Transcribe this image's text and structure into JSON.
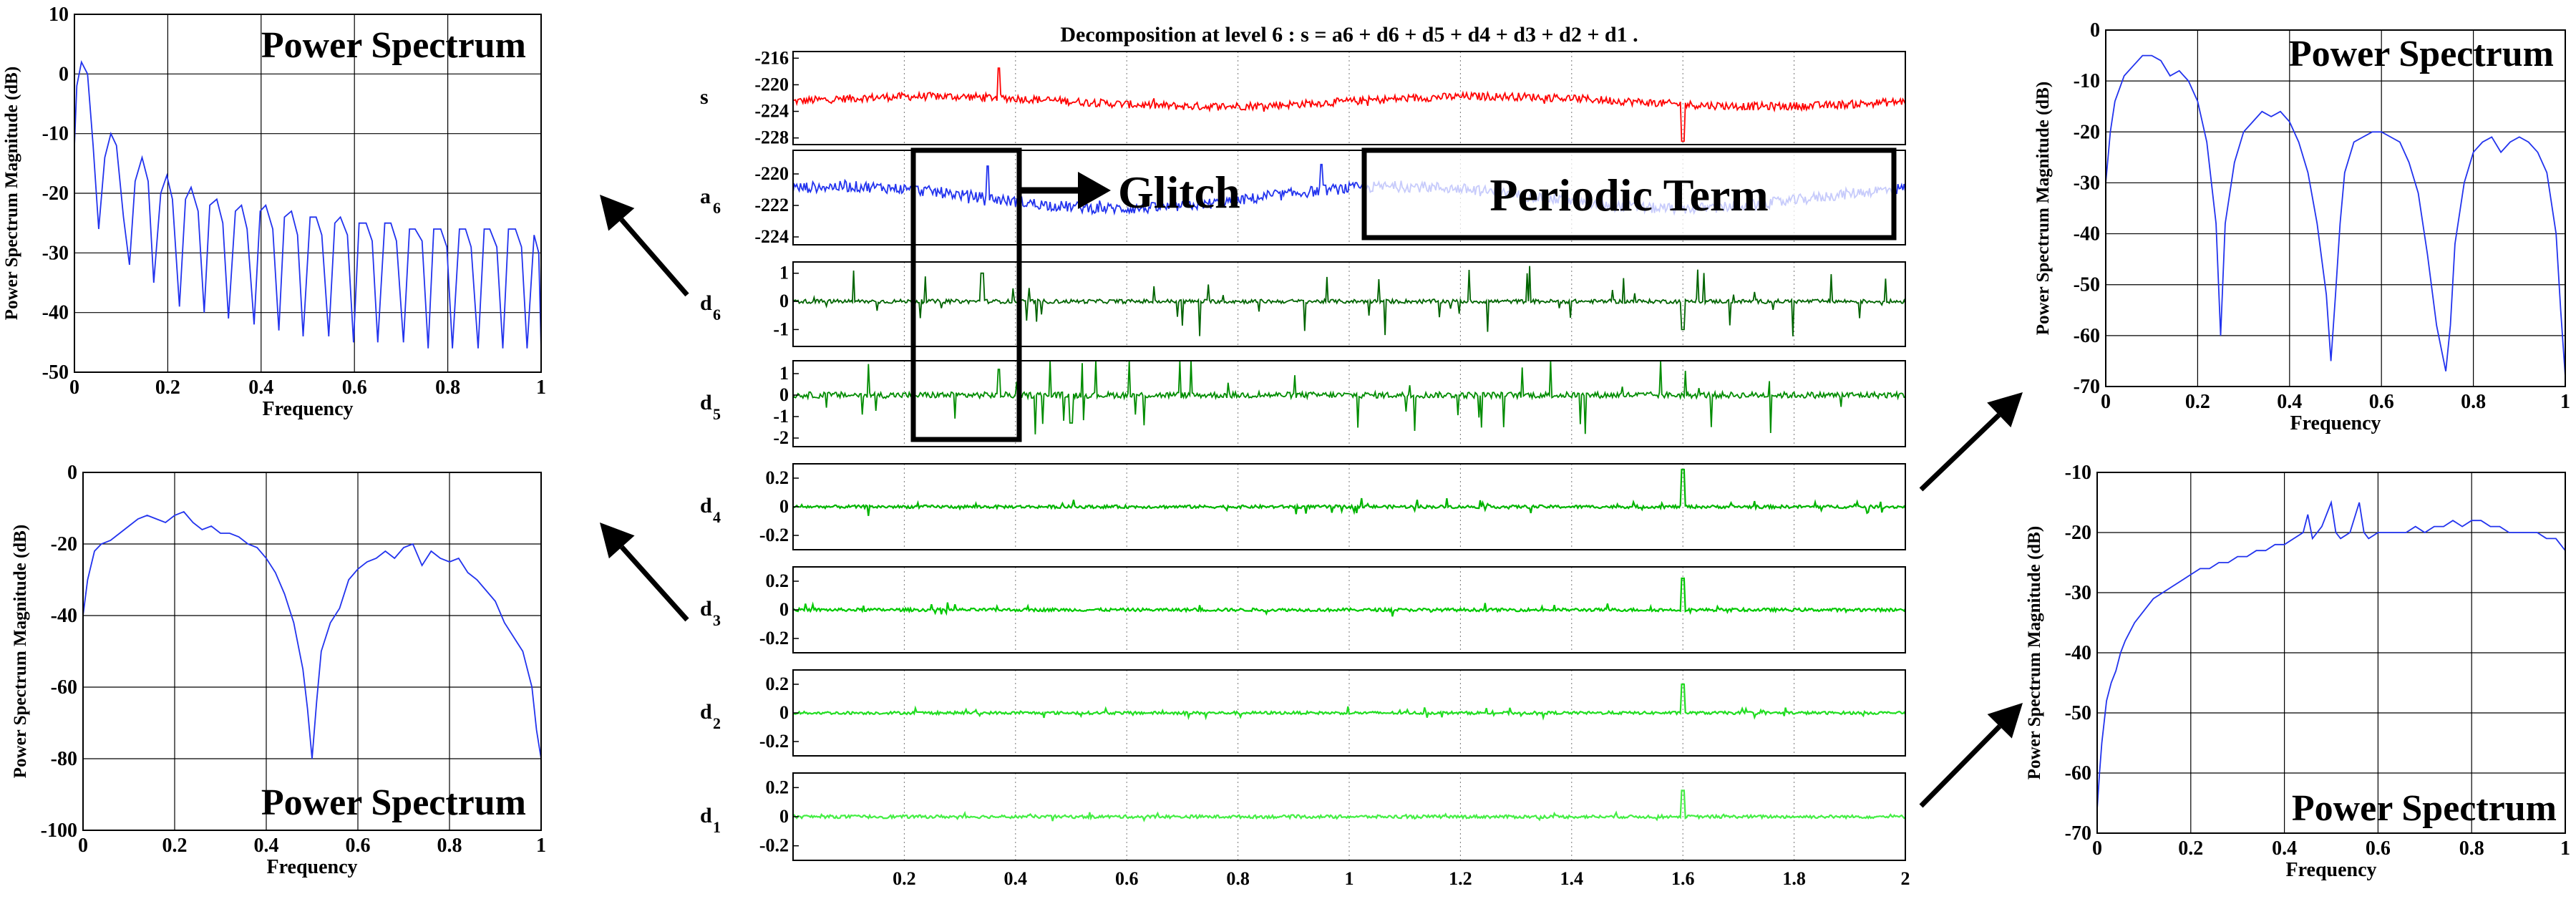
{
  "chart_data": [
    {
      "id": "ps_top_left",
      "type": "line",
      "title": "Power Spectrum",
      "xlabel": "Frequency",
      "ylabel": "Power Spectrum Magnitude (dB)",
      "xlim": [
        0,
        1
      ],
      "ylim": [
        -50,
        10
      ],
      "xticks": [
        "0",
        "0.2",
        "0.4",
        "0.6",
        "0.8",
        "1"
      ],
      "yticks": [
        "10",
        "0",
        "-10",
        "-20",
        "-30",
        "-40",
        "-50"
      ],
      "grid": true,
      "line_color": "#2233ee",
      "x": [
        0,
        0.005,
        0.015,
        0.028,
        0.04,
        0.052,
        0.065,
        0.078,
        0.09,
        0.105,
        0.118,
        0.13,
        0.145,
        0.158,
        0.17,
        0.185,
        0.198,
        0.21,
        0.225,
        0.238,
        0.25,
        0.265,
        0.278,
        0.29,
        0.305,
        0.318,
        0.33,
        0.345,
        0.358,
        0.37,
        0.385,
        0.398,
        0.41,
        0.425,
        0.438,
        0.45,
        0.465,
        0.478,
        0.49,
        0.505,
        0.518,
        0.53,
        0.545,
        0.558,
        0.57,
        0.585,
        0.598,
        0.61,
        0.625,
        0.638,
        0.65,
        0.665,
        0.678,
        0.69,
        0.705,
        0.718,
        0.73,
        0.745,
        0.758,
        0.77,
        0.785,
        0.798,
        0.81,
        0.825,
        0.838,
        0.85,
        0.865,
        0.878,
        0.89,
        0.905,
        0.918,
        0.93,
        0.945,
        0.958,
        0.97,
        0.985,
        0.995,
        1.0
      ],
      "y": [
        -12,
        -2,
        2,
        0,
        -12,
        -26,
        -14,
        -10,
        -12,
        -24,
        -32,
        -18,
        -14,
        -18,
        -35,
        -20,
        -17,
        -21,
        -39,
        -21,
        -19,
        -23,
        -40,
        -22,
        -21,
        -25,
        -41,
        -23,
        -22,
        -26,
        -42,
        -23,
        -22,
        -26,
        -43,
        -24,
        -23,
        -27,
        -44,
        -24,
        -24,
        -27,
        -44,
        -25,
        -24,
        -27,
        -45,
        -25,
        -25,
        -28,
        -45,
        -25,
        -25,
        -28,
        -45,
        -26,
        -26,
        -28,
        -46,
        -26,
        -26,
        -29,
        -46,
        -26,
        -26,
        -29,
        -46,
        -26,
        -26,
        -29,
        -46,
        -26,
        -26,
        -29,
        -46,
        -27,
        -30,
        -46
      ]
    },
    {
      "id": "ps_bottom_left",
      "type": "line",
      "title": "Power Spectrum",
      "xlabel": "Frequency",
      "ylabel": "Power Spectrum Magnitude (dB)",
      "xlim": [
        0,
        1
      ],
      "ylim": [
        -100,
        0
      ],
      "xticks": [
        "0",
        "0.2",
        "0.4",
        "0.6",
        "0.8",
        "1"
      ],
      "yticks": [
        "0",
        "-20",
        "-40",
        "-60",
        "-80",
        "-100"
      ],
      "grid": true,
      "line_color": "#2233ee",
      "x": [
        0,
        0.01,
        0.025,
        0.04,
        0.06,
        0.08,
        0.1,
        0.12,
        0.14,
        0.16,
        0.18,
        0.2,
        0.22,
        0.24,
        0.26,
        0.28,
        0.3,
        0.32,
        0.34,
        0.36,
        0.38,
        0.4,
        0.42,
        0.44,
        0.46,
        0.48,
        0.49,
        0.5,
        0.51,
        0.52,
        0.54,
        0.56,
        0.58,
        0.6,
        0.62,
        0.64,
        0.66,
        0.68,
        0.7,
        0.72,
        0.74,
        0.76,
        0.78,
        0.8,
        0.82,
        0.84,
        0.86,
        0.88,
        0.9,
        0.92,
        0.94,
        0.96,
        0.98,
        0.99,
        1.0
      ],
      "y": [
        -40,
        -30,
        -22,
        -20,
        -19,
        -17,
        -15,
        -13,
        -12,
        -13,
        -14,
        -12,
        -11,
        -14,
        -16,
        -15,
        -17,
        -17,
        -18,
        -20,
        -21,
        -24,
        -28,
        -34,
        -42,
        -55,
        -66,
        -80,
        -64,
        -50,
        -42,
        -38,
        -30,
        -27,
        -25,
        -24,
        -22,
        -24,
        -21,
        -20,
        -26,
        -22,
        -24,
        -25,
        -24,
        -28,
        -30,
        -33,
        -36,
        -42,
        -46,
        -50,
        -60,
        -72,
        -80
      ]
    },
    {
      "id": "ps_top_right",
      "type": "line",
      "title": "Power Spectrum",
      "xlabel": "Frequency",
      "ylabel": "Power Spectrum Magnitude (dB)",
      "xlim": [
        0,
        1
      ],
      "ylim": [
        -70,
        0
      ],
      "xticks": [
        "0",
        "0.2",
        "0.4",
        "0.6",
        "0.8",
        "1"
      ],
      "yticks": [
        "0",
        "-10",
        "-20",
        "-30",
        "-40",
        "-50",
        "-60",
        "-70"
      ],
      "grid": true,
      "line_color": "#2233ee",
      "x": [
        0,
        0.01,
        0.02,
        0.04,
        0.06,
        0.08,
        0.1,
        0.12,
        0.14,
        0.16,
        0.18,
        0.2,
        0.22,
        0.24,
        0.25,
        0.26,
        0.28,
        0.3,
        0.32,
        0.34,
        0.36,
        0.38,
        0.4,
        0.42,
        0.44,
        0.46,
        0.48,
        0.49,
        0.5,
        0.51,
        0.52,
        0.54,
        0.56,
        0.58,
        0.6,
        0.62,
        0.64,
        0.66,
        0.68,
        0.7,
        0.72,
        0.74,
        0.75,
        0.76,
        0.78,
        0.8,
        0.82,
        0.84,
        0.86,
        0.88,
        0.9,
        0.92,
        0.94,
        0.96,
        0.98,
        0.99,
        1.0
      ],
      "y": [
        -30,
        -20,
        -14,
        -9,
        -7,
        -5,
        -5,
        -6,
        -9,
        -8,
        -10,
        -14,
        -22,
        -38,
        -60,
        -38,
        -26,
        -20,
        -18,
        -16,
        -17,
        -16,
        -18,
        -22,
        -28,
        -38,
        -52,
        -65,
        -52,
        -38,
        -28,
        -22,
        -21,
        -20,
        -20,
        -21,
        -22,
        -26,
        -32,
        -44,
        -58,
        -67,
        -58,
        -42,
        -30,
        -24,
        -22,
        -21,
        -24,
        -22,
        -21,
        -22,
        -24,
        -28,
        -40,
        -55,
        -68
      ]
    },
    {
      "id": "ps_bottom_right",
      "type": "line",
      "title": "Power Spectrum",
      "xlabel": "Frequency",
      "ylabel": "Power Spectrum Magnitude (dB)",
      "xlim": [
        0,
        1
      ],
      "ylim": [
        -70,
        -10
      ],
      "xticks": [
        "0",
        "0.2",
        "0.4",
        "0.6",
        "0.8",
        "1"
      ],
      "yticks": [
        "-10",
        "-20",
        "-30",
        "-40",
        "-50",
        "-60",
        "-70"
      ],
      "grid": true,
      "line_color": "#2233ee",
      "x": [
        0,
        0.005,
        0.01,
        0.02,
        0.03,
        0.04,
        0.05,
        0.06,
        0.08,
        0.1,
        0.12,
        0.14,
        0.16,
        0.18,
        0.2,
        0.22,
        0.24,
        0.26,
        0.28,
        0.3,
        0.32,
        0.34,
        0.36,
        0.38,
        0.4,
        0.42,
        0.44,
        0.45,
        0.46,
        0.48,
        0.5,
        0.51,
        0.52,
        0.54,
        0.56,
        0.57,
        0.58,
        0.6,
        0.62,
        0.64,
        0.66,
        0.68,
        0.7,
        0.72,
        0.74,
        0.76,
        0.78,
        0.8,
        0.82,
        0.84,
        0.86,
        0.88,
        0.9,
        0.92,
        0.94,
        0.96,
        0.98,
        1.0
      ],
      "y": [
        -66,
        -60,
        -55,
        -48,
        -45,
        -43,
        -40,
        -38,
        -35,
        -33,
        -31,
        -30,
        -29,
        -28,
        -27,
        -26,
        -26,
        -25,
        -25,
        -24,
        -24,
        -23,
        -23,
        -22,
        -22,
        -21,
        -20,
        -17,
        -21,
        -19,
        -15,
        -20,
        -21,
        -20,
        -15,
        -20,
        -21,
        -20,
        -20,
        -20,
        -20,
        -19,
        -20,
        -19,
        -19,
        -18,
        -19,
        -18,
        -18,
        -19,
        -19,
        -20,
        -20,
        -20,
        -20,
        -21,
        -21,
        -23
      ]
    },
    {
      "id": "wavelet_decomposition",
      "type": "line",
      "title": "Decomposition at level 6 : s = a6 + d6 + d5 + d4 + d3 + d2 + d1 .",
      "xlim": [
        0,
        2
      ],
      "xticks": [
        "0.2",
        "0.4",
        "0.6",
        "0.8",
        "1",
        "1.2",
        "1.4",
        "1.6",
        "1.8",
        "2"
      ],
      "annotations": [
        "Glitch",
        "Periodic Term"
      ],
      "series": [
        {
          "name": "s",
          "sub": "",
          "color": "#ff0000",
          "ylim": [
            -229,
            -215
          ],
          "yticks": [
            "-216",
            "-220",
            "-224",
            "-228"
          ],
          "base": -222.5,
          "trend": 1.5,
          "noise": 0.6,
          "spikes": 0.4,
          "x_detail": [
            0.37,
            1.6
          ],
          "y_detail": [
            -217.5,
            -228.5
          ]
        },
        {
          "name": "a",
          "sub": "6",
          "color": "#2233ee",
          "ylim": [
            -224.5,
            -218.5
          ],
          "yticks": [
            "-220",
            "-222",
            "-224"
          ],
          "base": -221.5,
          "trend": 1.4,
          "noise": 0.35,
          "spikes": 0.2,
          "x_detail": [
            0.35,
            0.95
          ],
          "y_detail": [
            -219.5,
            -219.4
          ]
        },
        {
          "name": "d",
          "sub": "6",
          "color": "#006400",
          "ylim": [
            -1.6,
            1.4
          ],
          "yticks": [
            "1",
            "0",
            "-1"
          ],
          "base": 0,
          "trend": 0,
          "noise": 0.08,
          "spikes": 0.8,
          "x_detail": [
            0.34,
            1.6
          ],
          "y_detail": [
            1.0,
            -1.0
          ]
        },
        {
          "name": "d",
          "sub": "5",
          "color": "#008c00",
          "ylim": [
            -2.4,
            1.6
          ],
          "yticks": [
            "1",
            "0",
            "-1",
            "-2"
          ],
          "base": 0,
          "trend": 0,
          "noise": 0.12,
          "spikes": 1.0,
          "x_detail": [
            0.37,
            0.5
          ],
          "y_detail": [
            1.2,
            -1.3
          ]
        },
        {
          "name": "d",
          "sub": "4",
          "color": "#00b400",
          "ylim": [
            -0.3,
            0.3
          ],
          "yticks": [
            "0.2",
            "0",
            "-0.2"
          ],
          "base": 0,
          "trend": 0,
          "noise": 0.06,
          "spikes": 0.2,
          "x_detail": [
            1.6
          ],
          "y_detail": [
            0.26
          ]
        },
        {
          "name": "d",
          "sub": "3",
          "color": "#00c800",
          "ylim": [
            -0.3,
            0.3
          ],
          "yticks": [
            "0.2",
            "0",
            "-0.2"
          ],
          "base": 0,
          "trend": 0,
          "noise": 0.06,
          "spikes": 0.15,
          "x_detail": [
            1.6
          ],
          "y_detail": [
            0.22
          ]
        },
        {
          "name": "d",
          "sub": "2",
          "color": "#22dd22",
          "ylim": [
            -0.3,
            0.3
          ],
          "yticks": [
            "0.2",
            "0",
            "-0.2"
          ],
          "base": 0,
          "trend": 0,
          "noise": 0.055,
          "spikes": 0.12,
          "x_detail": [
            1.6
          ],
          "y_detail": [
            0.2
          ]
        },
        {
          "name": "d",
          "sub": "1",
          "color": "#44ee44",
          "ylim": [
            -0.3,
            0.3
          ],
          "yticks": [
            "0.2",
            "0",
            "-0.2"
          ],
          "base": 0,
          "trend": 0,
          "noise": 0.06,
          "spikes": 0.08,
          "x_detail": [
            1.6
          ],
          "y_detail": [
            0.18
          ]
        }
      ]
    }
  ]
}
